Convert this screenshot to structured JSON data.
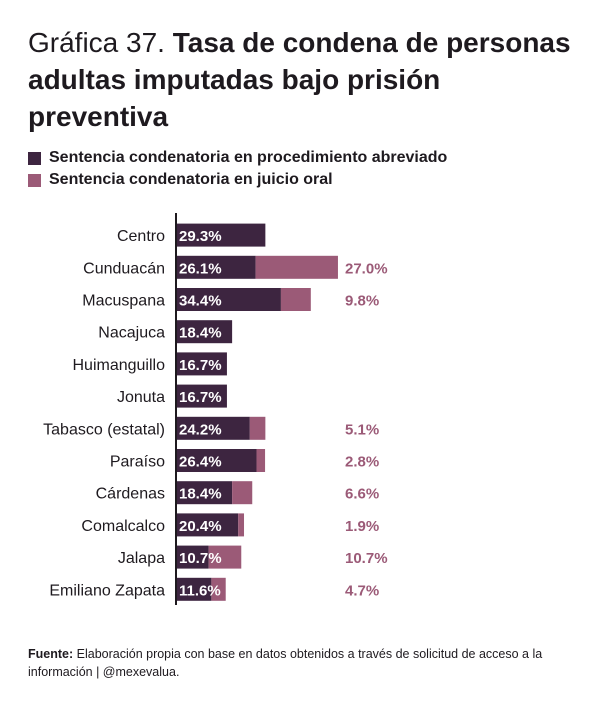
{
  "header": {
    "lead": "Gráfica 37.",
    "title": "Tasa de condena de personas adultas imputadas bajo prisión preventiva"
  },
  "legend": [
    {
      "label": "Sentencia condenatoria en procedimiento abreviado",
      "color": "#3d2540"
    },
    {
      "label": "Sentencia condenatoria en juicio oral",
      "color": "#9b5a77"
    }
  ],
  "chart_data": {
    "type": "bar",
    "orientation": "horizontal",
    "stacked": true,
    "categories": [
      "Centro",
      "Cunduacán",
      "Macuspana",
      "Nacajuca",
      "Huimanguillo",
      "Jonuta",
      "Tabasco (estatal)",
      "Paraíso",
      "Cárdenas",
      "Comalcalco",
      "Jalapa",
      "Emiliano Zapata"
    ],
    "series": [
      {
        "name": "Sentencia condenatoria en procedimiento abreviado",
        "color": "#3d2540",
        "values": [
          29.3,
          26.1,
          34.4,
          18.4,
          16.7,
          16.7,
          24.2,
          26.4,
          18.4,
          20.4,
          10.7,
          11.6
        ],
        "labels": [
          "29.3%",
          "26.1%",
          "34.4%",
          "18.4%",
          "16.7%",
          "16.7%",
          "24.2%",
          "26.4%",
          "18.4%",
          "20.4%",
          "10.7%",
          "11.6%"
        ]
      },
      {
        "name": "Sentencia condenatoria en juicio oral",
        "color": "#9b5a77",
        "values": [
          null,
          27.0,
          9.8,
          null,
          null,
          null,
          5.1,
          2.8,
          6.6,
          1.9,
          10.7,
          4.7
        ],
        "labels": [
          null,
          "27.0%",
          "9.8%",
          null,
          null,
          null,
          "5.1%",
          "2.8%",
          "6.6%",
          "1.9%",
          "10.7%",
          "4.7%"
        ]
      }
    ],
    "title": "Tasa de condena de personas adultas imputadas bajo prisión preventiva",
    "xlim": [
      0,
      60
    ]
  },
  "footer": {
    "label": "Fuente:",
    "text": "Elaboración propia con base en datos obtenidos a través de solicitud de acceso a la información | @mexevalua."
  }
}
